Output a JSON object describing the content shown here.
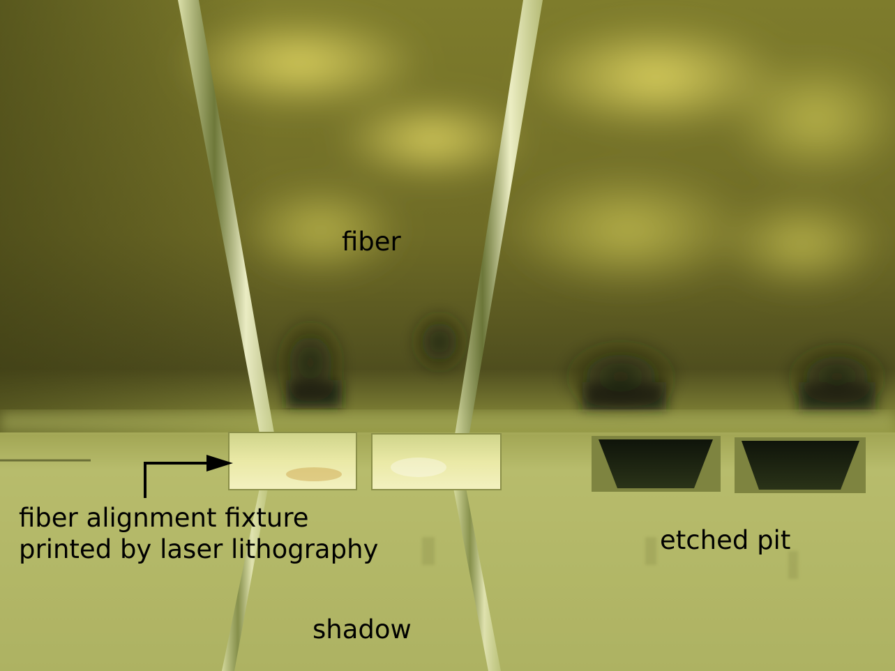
{
  "annotations": {
    "fiber": "fiber",
    "fixture_line1": "fiber alignment fixture",
    "fixture_line2": "printed by laser lithography",
    "etched_pit": "etched pit",
    "shadow": "shadow"
  },
  "colors": {
    "background_top": "#8f8d2c",
    "background_mid": "#7a7a2e",
    "substrate": "#b9be6c",
    "highlight": "#e6d85a",
    "pit_dark": "#1e2410",
    "label_text": "#000000",
    "arrow": "#000000"
  }
}
